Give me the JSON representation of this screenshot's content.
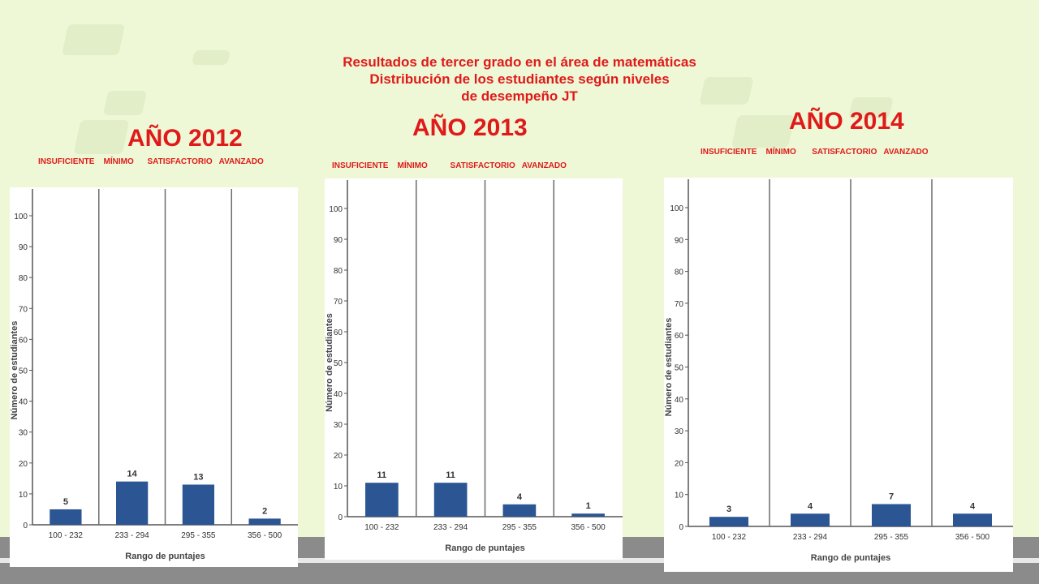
{
  "heading": {
    "line1": "Resultados de tercer grado en el área de matemáticas",
    "line2": "Distribución de los estudiantes según niveles",
    "line3": "de desempeño JT"
  },
  "colors": {
    "title": "#e01a1a",
    "bar": "#2b5593",
    "background": "#eef8d6"
  },
  "charts": [
    {
      "year_label": "AÑO 2012",
      "levels_label": "INSUFICIENTE    MÍNIMO      SATISFACTORIO   AVANZADO"
    },
    {
      "year_label": "AÑO  2013",
      "levels_label": "INSUFICIENTE    MÍNIMO          SATISFACTORIO   AVANZADO"
    },
    {
      "year_label": "AÑO 2014",
      "levels_label": "INSUFICIENTE    MÍNIMO       SATISFACTORIO   AVANZADO"
    }
  ],
  "chart_data": [
    {
      "type": "bar",
      "categories": [
        "100 - 232",
        "233 - 294",
        "295 - 355",
        "356 - 500"
      ],
      "values": [
        5,
        14,
        13,
        2
      ],
      "ylim": [
        0,
        100
      ],
      "yticks": [
        0,
        10,
        20,
        30,
        40,
        50,
        60,
        70,
        80,
        90,
        100
      ],
      "xlabel": "Rango de puntajes",
      "ylabel": "Número de estudiantes",
      "grid": false
    },
    {
      "type": "bar",
      "categories": [
        "100 - 232",
        "233 - 294",
        "295 - 355",
        "356 - 500"
      ],
      "values": [
        11,
        11,
        4,
        1
      ],
      "ylim": [
        0,
        100
      ],
      "yticks": [
        0,
        10,
        20,
        30,
        40,
        50,
        60,
        70,
        80,
        90,
        100
      ],
      "xlabel": "Rango de puntajes",
      "ylabel": "Número de estudiantes",
      "grid": false
    },
    {
      "type": "bar",
      "categories": [
        "100 - 232",
        "233 - 294",
        "295 - 355",
        "356 - 500"
      ],
      "values": [
        3,
        4,
        7,
        4
      ],
      "ylim": [
        0,
        100
      ],
      "yticks": [
        0,
        10,
        20,
        30,
        40,
        50,
        60,
        70,
        80,
        90,
        100
      ],
      "xlabel": "Rango de puntajes",
      "ylabel": "Número de estudiantes",
      "grid": false
    }
  ]
}
